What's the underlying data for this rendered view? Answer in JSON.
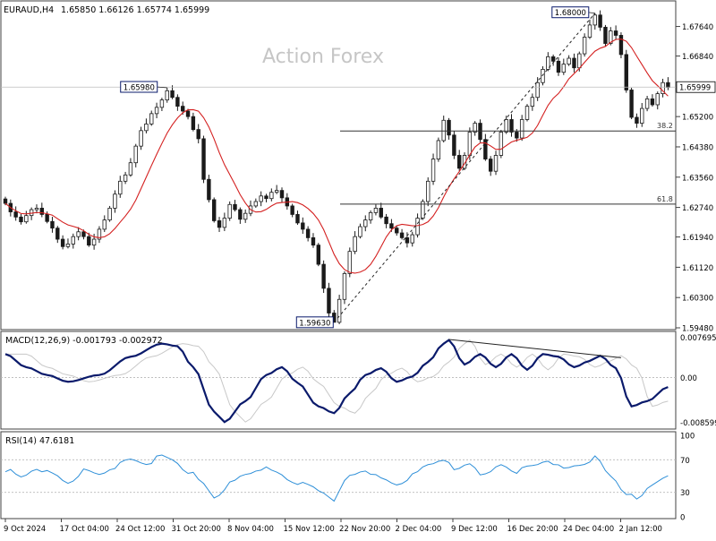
{
  "header": {
    "symbol": "EURAUD,H4",
    "ohlc": "1.65850 1.66126 1.65774 1.65999"
  },
  "watermark": "Action Forex",
  "colors": {
    "candle": "#1a1a1a",
    "sma": "#d42020",
    "macd": "#0a1a6b",
    "signal": "#c8c8c8",
    "rsi": "#2e8fd8",
    "grid": "#b8b8b8",
    "frame": "#404040",
    "label_border": "#0a1a6b"
  },
  "chart_data": [
    {
      "type": "candlestick",
      "name": "price",
      "ylim": [
        1.5948,
        1.6826
      ],
      "y_ticks": [
        "1.67640",
        "1.66840",
        "1.65200",
        "1.64380",
        "1.63560",
        "1.62740",
        "1.61940",
        "1.61120",
        "1.60300",
        "1.59480"
      ],
      "x_ticks": [
        "9 Oct 2024",
        "17 Oct 04:00",
        "24 Oct 12:00",
        "31 Oct 20:00",
        "8 Nov 04:00",
        "15 Nov 12:00",
        "22 Nov 20:00",
        "2 Dec 04:00",
        "9 Dec 12:00",
        "16 Dec 20:00",
        "24 Dec 04:00",
        "2 Jan 12:00"
      ],
      "current_price": "1.65999",
      "swing_labels": [
        {
          "text": "1.65980",
          "value": 1.6598,
          "index": 31
        },
        {
          "text": "1.59630",
          "value": 1.5963,
          "index": 63
        },
        {
          "text": "1.68000",
          "value": 1.68,
          "index": 113
        }
      ],
      "fib_levels": [
        {
          "label": "38.2",
          "value": 1.6481
        },
        {
          "label": "61.8",
          "value": 1.6283
        }
      ],
      "trendline": {
        "from_index": 63,
        "from_value": 1.5963,
        "to_index": 113,
        "to_value": 1.68
      },
      "close_series": [
        1.6285,
        1.6262,
        1.6248,
        1.6235,
        1.6252,
        1.6268,
        1.6272,
        1.6255,
        1.6236,
        1.6218,
        1.6188,
        1.6168,
        1.6175,
        1.6195,
        1.6208,
        1.6195,
        1.6172,
        1.6188,
        1.6215,
        1.624,
        1.6272,
        1.631,
        1.6345,
        1.6362,
        1.6395,
        1.644,
        1.6482,
        1.65,
        1.6528,
        1.6545,
        1.6565,
        1.659,
        1.6572,
        1.6548,
        1.6535,
        1.652,
        1.6485,
        1.646,
        1.635,
        1.6295,
        1.6238,
        1.622,
        1.6245,
        1.6282,
        1.6268,
        1.6242,
        1.6258,
        1.6278,
        1.629,
        1.6305,
        1.6298,
        1.6315,
        1.632,
        1.63,
        1.6278,
        1.6255,
        1.6232,
        1.6215,
        1.6192,
        1.6172,
        1.612,
        1.6055,
        1.5988,
        1.5963,
        1.6025,
        1.6095,
        1.6155,
        1.6195,
        1.6222,
        1.624,
        1.626,
        1.6272,
        1.6248,
        1.623,
        1.6218,
        1.6205,
        1.6192,
        1.6178,
        1.62,
        1.6245,
        1.629,
        1.6345,
        1.6405,
        1.6455,
        1.651,
        1.647,
        1.6415,
        1.638,
        1.6415,
        1.6478,
        1.6502,
        1.6458,
        1.6405,
        1.6372,
        1.6415,
        1.6478,
        1.6512,
        1.6478,
        1.6462,
        1.6512,
        1.6548,
        1.6572,
        1.6612,
        1.6648,
        1.6682,
        1.667,
        1.664,
        1.6662,
        1.6678,
        1.6652,
        1.669,
        1.6735,
        1.6768,
        1.6795,
        1.6762,
        1.6718,
        1.6752,
        1.674,
        1.6688,
        1.6592,
        1.6518,
        1.6502,
        1.6542,
        1.6568,
        1.6552,
        1.6582,
        1.6612,
        1.6599
      ],
      "sma_period": 50
    },
    {
      "type": "line",
      "name": "macd",
      "label": "MACD(12,26,9) -0.001793 -0.002972",
      "y_ticks": [
        "0.007695",
        "0.00",
        "-0.008599"
      ],
      "ylim": [
        -0.0095,
        0.0085
      ],
      "main_knots": [
        [
          0,
          0.0045
        ],
        [
          4,
          0.002
        ],
        [
          8,
          0.0005
        ],
        [
          12,
          -0.0008
        ],
        [
          18,
          0.0005
        ],
        [
          24,
          0.004
        ],
        [
          30,
          0.0065
        ],
        [
          33,
          0.006
        ],
        [
          36,
          0.002
        ],
        [
          40,
          -0.0065
        ],
        [
          42,
          -0.0085
        ],
        [
          46,
          -0.0045
        ],
        [
          50,
          0.0005
        ],
        [
          53,
          0.002
        ],
        [
          56,
          -0.001
        ],
        [
          60,
          -0.0055
        ],
        [
          63,
          -0.0068
        ],
        [
          66,
          -0.003
        ],
        [
          69,
          0.0005
        ],
        [
          72,
          0.0018
        ],
        [
          75,
          -0.0008
        ],
        [
          78,
          0.0002
        ],
        [
          81,
          0.003
        ],
        [
          84,
          0.0065
        ],
        [
          85,
          0.0072
        ],
        [
          88,
          0.0025
        ],
        [
          91,
          0.0045
        ],
        [
          94,
          0.002
        ],
        [
          97,
          0.0045
        ],
        [
          100,
          0.0015
        ],
        [
          103,
          0.0045
        ],
        [
          106,
          0.004
        ],
        [
          109,
          0.002
        ],
        [
          112,
          0.0032
        ],
        [
          114,
          0.0042
        ],
        [
          117,
          0.0018
        ],
        [
          120,
          -0.0055
        ],
        [
          123,
          -0.0045
        ],
        [
          127,
          -0.0018
        ]
      ],
      "signal_lag": 4,
      "trendline": {
        "from_index": 85,
        "from_value": 0.0073,
        "to_index": 118,
        "to_value": 0.0038
      }
    },
    {
      "type": "line",
      "name": "rsi",
      "label": "RSI(14) 47.6181",
      "y_ticks": [
        "100",
        "70",
        "30",
        "0"
      ],
      "ylim": [
        0,
        100
      ],
      "knots": [
        [
          0,
          58
        ],
        [
          3,
          48
        ],
        [
          6,
          60
        ],
        [
          9,
          52
        ],
        [
          12,
          42
        ],
        [
          15,
          56
        ],
        [
          18,
          52
        ],
        [
          21,
          62
        ],
        [
          24,
          70
        ],
        [
          27,
          66
        ],
        [
          30,
          74
        ],
        [
          32,
          70
        ],
        [
          35,
          56
        ],
        [
          38,
          40
        ],
        [
          40,
          24
        ],
        [
          43,
          40
        ],
        [
          46,
          52
        ],
        [
          49,
          60
        ],
        [
          52,
          54
        ],
        [
          55,
          44
        ],
        [
          58,
          38
        ],
        [
          61,
          30
        ],
        [
          63,
          22
        ],
        [
          66,
          50
        ],
        [
          69,
          58
        ],
        [
          72,
          46
        ],
        [
          75,
          40
        ],
        [
          78,
          50
        ],
        [
          81,
          64
        ],
        [
          84,
          72
        ],
        [
          86,
          56
        ],
        [
          89,
          66
        ],
        [
          92,
          50
        ],
        [
          95,
          64
        ],
        [
          98,
          56
        ],
        [
          101,
          62
        ],
        [
          104,
          70
        ],
        [
          107,
          58
        ],
        [
          110,
          64
        ],
        [
          113,
          72
        ],
        [
          116,
          50
        ],
        [
          119,
          30
        ],
        [
          121,
          20
        ],
        [
          124,
          40
        ],
        [
          126,
          50
        ],
        [
          127,
          47.6
        ]
      ]
    }
  ]
}
